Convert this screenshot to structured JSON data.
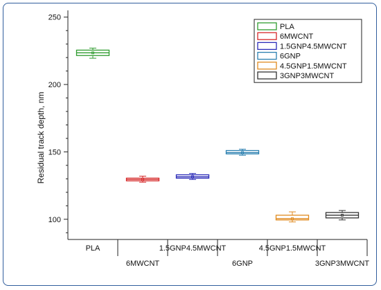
{
  "chart_data": {
    "type": "box",
    "ylabel": "Residual track depth, nm",
    "xlabel": "",
    "ylim": [
      85,
      255
    ],
    "yticks": [
      100,
      150,
      200,
      250
    ],
    "categories": [
      "PLA",
      "6MWCNT",
      "1.5GNP4.5MWCNT",
      "6GNP",
      "4.5GNP1.5MWCNT",
      "3GNP3MWCNT"
    ],
    "series": [
      {
        "name": "PLA",
        "color": "#2e9b2e",
        "min": 219.5,
        "q1": 221.5,
        "median": 223.5,
        "q3": 225.5,
        "max": 227
      },
      {
        "name": "6MWCNT",
        "color": "#d62728",
        "min": 127.5,
        "q1": 128.5,
        "median": 129.5,
        "q3": 130.5,
        "max": 132
      },
      {
        "name": "1.5GNP4.5MWCNT",
        "color": "#2a2ab8",
        "min": 129.5,
        "q1": 130.5,
        "median": 131.5,
        "q3": 133,
        "max": 134
      },
      {
        "name": "6GNP",
        "color": "#2a7fb0",
        "min": 147.5,
        "q1": 148.5,
        "median": 149.5,
        "q3": 151,
        "max": 152
      },
      {
        "name": "4.5GNP1.5MWCNT",
        "color": "#e08a1e",
        "min": 98,
        "q1": 99.5,
        "median": 100.5,
        "q3": 103,
        "max": 105.5
      },
      {
        "name": "3GNP3MWCNT",
        "color": "#333333",
        "min": 99.5,
        "q1": 101,
        "median": 103,
        "q3": 105,
        "max": 106.5
      }
    ],
    "legend_position": "top-right",
    "grid": false
  }
}
